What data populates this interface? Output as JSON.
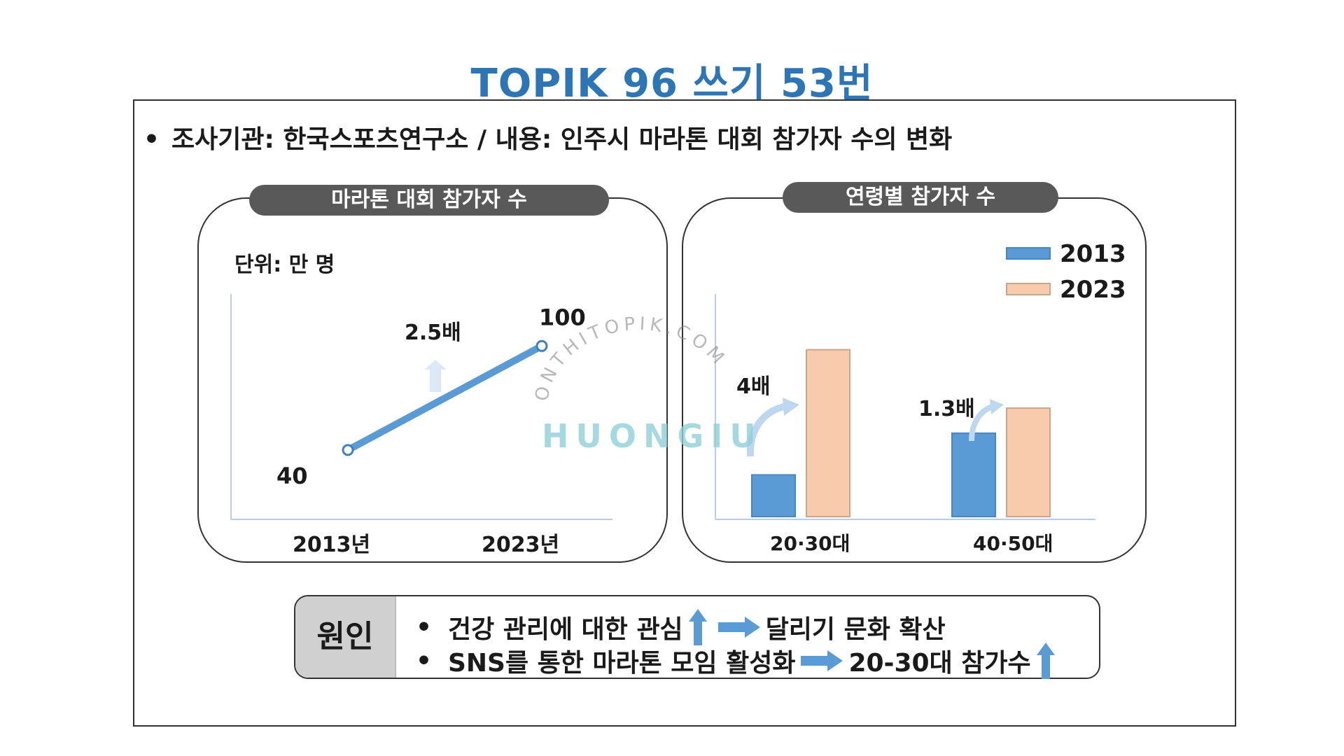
{
  "page": {
    "title": "TOPIK 96 쓰기 53번",
    "header_bullet": "조사기관: 한국스포츠연구소 / 내용: 인주시 마라톤 대회 참가자 수의 변화",
    "watermark_top": "ONTHITOPIK.COM",
    "watermark_main": "HUONGIU"
  },
  "colors": {
    "title": "#2e75b6",
    "line": "#5b9bd5",
    "bar_2013": "#5b9bd5",
    "bar_2023": "#f8cbad",
    "pill_bg": "#595959",
    "cause_tag_bg": "#d0d0d0"
  },
  "chart_data": [
    {
      "type": "line",
      "title": "마라톤 대회 참가자 수",
      "unit_label": "단위: 만 명",
      "categories": [
        "2013년",
        "2023년"
      ],
      "values": [
        40,
        100
      ],
      "ylim": [
        0,
        130
      ],
      "annotations": [
        "2.5배"
      ],
      "grid": false
    },
    {
      "type": "bar",
      "title": "연령별 참가자 수",
      "categories": [
        "20·30대",
        "40·50대"
      ],
      "series": [
        {
          "name": "2013",
          "values": [
            10,
            20
          ]
        },
        {
          "name": "2023",
          "values": [
            40,
            26
          ]
        }
      ],
      "ylim": [
        0,
        50
      ],
      "annotations": [
        "4배",
        "1.3배"
      ],
      "legend": "top-right",
      "grid": false
    }
  ],
  "cause": {
    "tag": "원인",
    "lines": [
      {
        "bullet": "•",
        "text": "건강 관리에 대한 관심",
        "result": "달리기 문화 확산"
      },
      {
        "bullet": "•",
        "text": "SNS를 통한 마라톤 모임 활성화",
        "result": "20-30대 참가수"
      }
    ]
  }
}
